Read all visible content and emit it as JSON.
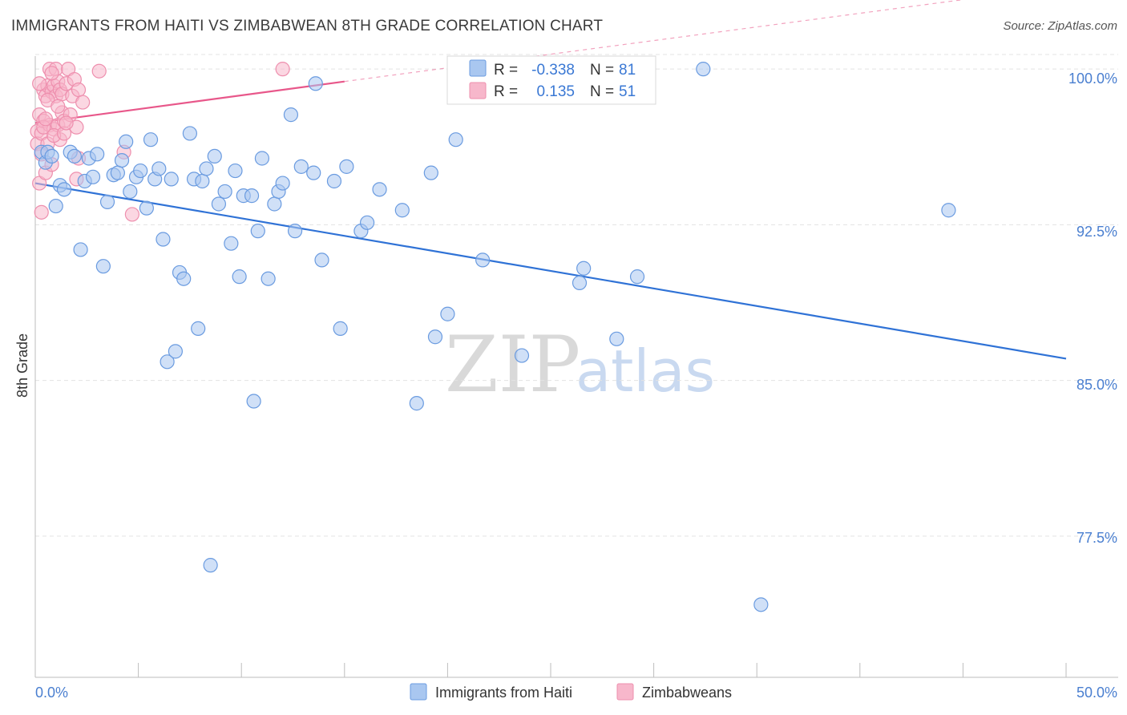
{
  "title": "IMMIGRANTS FROM HAITI VS ZIMBABWEAN 8TH GRADE CORRELATION CHART",
  "source": "Source: ZipAtlas.com",
  "watermark": {
    "zip": "ZIP",
    "atlas": "atlas"
  },
  "colors": {
    "blue_fill": "#a9c7f0",
    "blue_stroke": "#6a9be0",
    "blue_line": "#2f72d6",
    "pink_fill": "#f7b7cb",
    "pink_stroke": "#ee8fae",
    "pink_line": "#e8578a",
    "grid": "#e3e3e3",
    "tick_text": "#4a7fd0"
  },
  "legend": {
    "rows": [
      {
        "r_label": "R =",
        "r_value": "-0.338",
        "n_label": "N =",
        "n_value": "81"
      },
      {
        "r_label": "R =",
        "r_value": "0.135",
        "n_label": "N =",
        "n_value": "51"
      }
    ]
  },
  "bottom_legend": [
    {
      "label": "Immigrants from Haiti"
    },
    {
      "label": "Zimbabweans"
    }
  ],
  "chart_data": {
    "type": "scatter",
    "ylabel": "8th Grade",
    "xlabel": "",
    "xlim": [
      0,
      50
    ],
    "ylim": [
      70.7,
      100.7
    ],
    "x_tick_labels": [
      "0.0%",
      "50.0%"
    ],
    "y_ticks": [
      {
        "value": 100.0,
        "label": "100.0%"
      },
      {
        "value": 92.5,
        "label": "92.5%"
      },
      {
        "value": 85.0,
        "label": "85.0%"
      },
      {
        "value": 77.5,
        "label": "77.5%"
      }
    ],
    "grid": true,
    "legend_position": "top-center",
    "series": [
      {
        "name": "Immigrants from Haiti",
        "color_key": "blue",
        "trend": {
          "x0": 0,
          "y0": 94.5,
          "x1": 50,
          "y1": 86.05
        },
        "points": [
          [
            0.3,
            96.0
          ],
          [
            0.5,
            95.5
          ],
          [
            0.6,
            96.0
          ],
          [
            0.8,
            95.8
          ],
          [
            1.0,
            93.4
          ],
          [
            1.2,
            94.4
          ],
          [
            1.4,
            94.2
          ],
          [
            1.7,
            96.0
          ],
          [
            1.9,
            95.8
          ],
          [
            2.2,
            91.3
          ],
          [
            2.4,
            94.6
          ],
          [
            2.6,
            95.7
          ],
          [
            2.8,
            94.8
          ],
          [
            3.0,
            95.9
          ],
          [
            3.3,
            90.5
          ],
          [
            3.5,
            93.6
          ],
          [
            3.8,
            94.9
          ],
          [
            4.0,
            95.0
          ],
          [
            4.2,
            95.6
          ],
          [
            4.4,
            96.5
          ],
          [
            4.6,
            94.1
          ],
          [
            4.9,
            94.8
          ],
          [
            5.1,
            95.1
          ],
          [
            5.4,
            93.3
          ],
          [
            5.6,
            96.6
          ],
          [
            5.8,
            94.7
          ],
          [
            6.0,
            95.2
          ],
          [
            6.2,
            91.8
          ],
          [
            6.4,
            85.9
          ],
          [
            6.6,
            94.7
          ],
          [
            6.8,
            86.4
          ],
          [
            7.0,
            90.2
          ],
          [
            7.2,
            89.9
          ],
          [
            7.5,
            96.9
          ],
          [
            7.7,
            94.7
          ],
          [
            7.9,
            87.5
          ],
          [
            8.1,
            94.6
          ],
          [
            8.3,
            95.2
          ],
          [
            8.5,
            76.1
          ],
          [
            8.7,
            95.8
          ],
          [
            8.9,
            93.5
          ],
          [
            9.2,
            94.1
          ],
          [
            9.5,
            91.6
          ],
          [
            9.7,
            95.1
          ],
          [
            9.9,
            90.0
          ],
          [
            10.1,
            93.9
          ],
          [
            10.5,
            93.9
          ],
          [
            10.6,
            84.0
          ],
          [
            10.8,
            92.2
          ],
          [
            11.0,
            95.7
          ],
          [
            11.3,
            89.9
          ],
          [
            11.6,
            93.5
          ],
          [
            11.8,
            94.1
          ],
          [
            12.0,
            94.5
          ],
          [
            12.4,
            97.8
          ],
          [
            12.6,
            92.2
          ],
          [
            12.9,
            95.3
          ],
          [
            13.5,
            95.0
          ],
          [
            13.6,
            99.3
          ],
          [
            13.9,
            90.8
          ],
          [
            14.5,
            94.6
          ],
          [
            14.8,
            87.5
          ],
          [
            15.1,
            95.3
          ],
          [
            15.8,
            92.2
          ],
          [
            16.1,
            92.6
          ],
          [
            16.7,
            94.2
          ],
          [
            17.8,
            93.2
          ],
          [
            18.5,
            83.9
          ],
          [
            19.2,
            95.0
          ],
          [
            19.4,
            87.1
          ],
          [
            20.0,
            88.2
          ],
          [
            20.4,
            96.6
          ],
          [
            21.7,
            90.8
          ],
          [
            23.6,
            86.2
          ],
          [
            26.4,
            89.7
          ],
          [
            26.6,
            90.4
          ],
          [
            28.2,
            87.0
          ],
          [
            29.2,
            90.0
          ],
          [
            32.4,
            100.0
          ],
          [
            35.2,
            74.2
          ],
          [
            44.3,
            93.2
          ]
        ]
      },
      {
        "name": "Zimbabweans",
        "color_key": "pink",
        "trend": {
          "x0": 0,
          "y0": 97.4,
          "x1": 15,
          "y1": 99.4
        },
        "trend_dashed_to": {
          "x": 50,
          "y": 104.0
        },
        "points": [
          [
            0.1,
            97.0
          ],
          [
            0.1,
            96.4
          ],
          [
            0.2,
            94.5
          ],
          [
            0.2,
            97.8
          ],
          [
            0.3,
            93.1
          ],
          [
            0.3,
            96.9
          ],
          [
            0.4,
            99.0
          ],
          [
            0.4,
            97.5
          ],
          [
            0.5,
            95.0
          ],
          [
            0.5,
            98.7
          ],
          [
            0.6,
            96.4
          ],
          [
            0.6,
            99.2
          ],
          [
            0.7,
            100.0
          ],
          [
            0.7,
            97.3
          ],
          [
            0.8,
            95.4
          ],
          [
            0.8,
            98.9
          ],
          [
            0.9,
            99.2
          ],
          [
            0.9,
            97.1
          ],
          [
            1.0,
            100.0
          ],
          [
            1.0,
            98.7
          ],
          [
            1.1,
            99.4
          ],
          [
            1.1,
            97.3
          ],
          [
            1.2,
            99.0
          ],
          [
            1.2,
            96.6
          ],
          [
            1.3,
            98.8
          ],
          [
            1.3,
            97.9
          ],
          [
            1.4,
            97.5
          ],
          [
            1.5,
            99.3
          ],
          [
            1.6,
            100.0
          ],
          [
            1.7,
            97.8
          ],
          [
            1.8,
            98.7
          ],
          [
            1.9,
            99.5
          ],
          [
            2.0,
            94.7
          ],
          [
            2.0,
            97.2
          ],
          [
            2.1,
            95.7
          ],
          [
            2.1,
            99.0
          ],
          [
            2.3,
            98.4
          ],
          [
            3.1,
            99.9
          ],
          [
            4.3,
            96.0
          ],
          [
            4.7,
            93.0
          ],
          [
            12.0,
            100.0
          ],
          [
            0.2,
            99.3
          ],
          [
            0.3,
            95.9
          ],
          [
            0.4,
            97.2
          ],
          [
            0.6,
            98.5
          ],
          [
            0.9,
            96.8
          ],
          [
            1.1,
            98.2
          ],
          [
            1.4,
            96.9
          ],
          [
            0.5,
            97.6
          ],
          [
            0.8,
            99.8
          ],
          [
            1.5,
            97.4
          ]
        ]
      }
    ]
  }
}
